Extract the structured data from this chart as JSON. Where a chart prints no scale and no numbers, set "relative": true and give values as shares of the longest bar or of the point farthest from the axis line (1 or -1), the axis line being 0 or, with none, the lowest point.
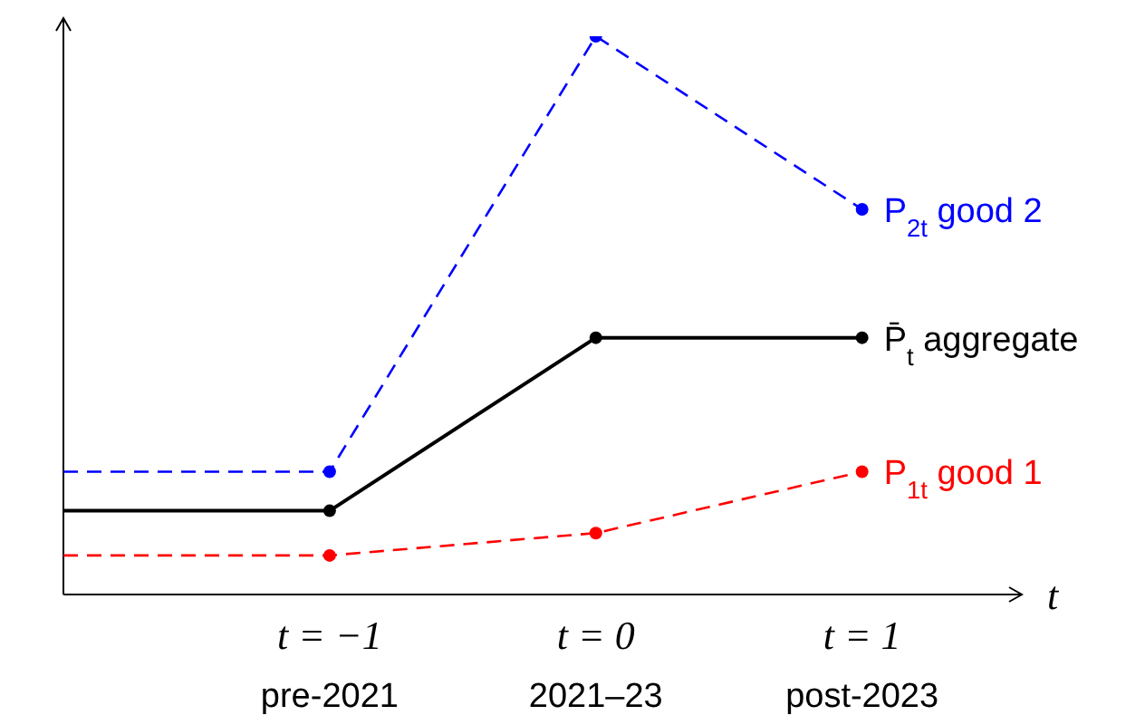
{
  "chart_data": {
    "type": "line",
    "relative": true,
    "xlabel": "t",
    "categories": [
      null,
      "t = −1\npre-2021",
      "t = 0\n2021–23",
      "t = 1\npost-2023"
    ],
    "marker": "circle",
    "series": [
      {
        "name": "P$_{2t}$ good 2",
        "color": "#0000ff",
        "line_style": "dashed",
        "values": [
          0.22,
          0.22,
          1,
          0.69
        ]
      },
      {
        "name": "P̄$_{t}$ aggregate",
        "color": "#000000",
        "line_style": "solid",
        "values": [
          0.15,
          0.15,
          0.46,
          0.46
        ]
      },
      {
        "name": "P$_{1t}$ good 1",
        "color": "#ff0000",
        "line_style": "dashed",
        "values": [
          0.07,
          0.07,
          0.11,
          0.22
        ]
      }
    ]
  }
}
